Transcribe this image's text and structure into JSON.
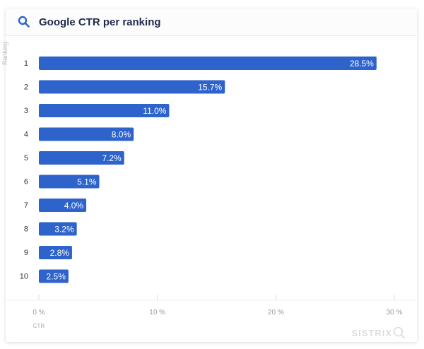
{
  "header": {
    "title": "Google CTR per ranking",
    "icon": "search-icon"
  },
  "brand": "SISTRIX",
  "chart_data": {
    "type": "bar",
    "orientation": "horizontal",
    "title": "Google CTR per ranking",
    "xlabel": "CTR",
    "ylabel": "Ranking",
    "categories": [
      "1",
      "2",
      "3",
      "4",
      "5",
      "6",
      "7",
      "8",
      "9",
      "10"
    ],
    "values": [
      28.5,
      15.7,
      11.0,
      8.0,
      7.2,
      5.1,
      4.0,
      3.2,
      2.8,
      2.5
    ],
    "data_labels": [
      "28.5%",
      "15.7%",
      "11.0%",
      "8.0%",
      "7.2%",
      "5.1%",
      "4.0%",
      "3.2%",
      "2.8%",
      "2.5%"
    ],
    "xlim": [
      0,
      30
    ],
    "x_ticks": [
      "0 %",
      "10 %",
      "20 %",
      "30 %"
    ],
    "bar_color": "#2f63cc",
    "grid": false
  }
}
